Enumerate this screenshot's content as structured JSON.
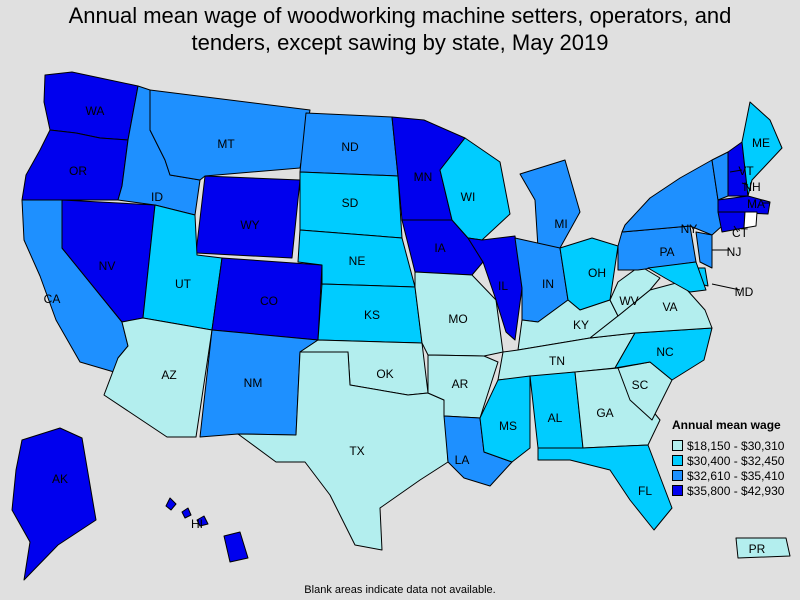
{
  "title_line1": "Annual mean wage of woodworking machine setters, operators, and",
  "title_line2": "tenders, except sawing by state, May 2019",
  "legend": {
    "title": "Annual mean wage",
    "classes": [
      {
        "label": "$18,150 - $30,310",
        "color": "#b3eeee"
      },
      {
        "label": "$30,400 - $32,450",
        "color": "#00ccff"
      },
      {
        "label": "$32,610 - $35,410",
        "color": "#1e90ff"
      },
      {
        "label": "$35,800 - $42,930",
        "color": "#0000ee"
      }
    ]
  },
  "footnote": "Blank areas indicate data not available.",
  "states": [
    {
      "abbr": "WA",
      "class": 3
    },
    {
      "abbr": "OR",
      "class": 3
    },
    {
      "abbr": "CA",
      "class": 2
    },
    {
      "abbr": "NV",
      "class": 3
    },
    {
      "abbr": "ID",
      "class": 2
    },
    {
      "abbr": "MT",
      "class": 2
    },
    {
      "abbr": "WY",
      "class": 3
    },
    {
      "abbr": "UT",
      "class": 1
    },
    {
      "abbr": "AZ",
      "class": 0
    },
    {
      "abbr": "CO",
      "class": 3
    },
    {
      "abbr": "NM",
      "class": 2
    },
    {
      "abbr": "ND",
      "class": 2
    },
    {
      "abbr": "SD",
      "class": 1
    },
    {
      "abbr": "NE",
      "class": 1
    },
    {
      "abbr": "KS",
      "class": 1
    },
    {
      "abbr": "OK",
      "class": 0
    },
    {
      "abbr": "TX",
      "class": 0
    },
    {
      "abbr": "MN",
      "class": 3
    },
    {
      "abbr": "IA",
      "class": 3
    },
    {
      "abbr": "MO",
      "class": 0
    },
    {
      "abbr": "AR",
      "class": 0
    },
    {
      "abbr": "LA",
      "class": 2
    },
    {
      "abbr": "WI",
      "class": 1
    },
    {
      "abbr": "IL",
      "class": 3
    },
    {
      "abbr": "MI",
      "class": 2
    },
    {
      "abbr": "IN",
      "class": 2
    },
    {
      "abbr": "OH",
      "class": 1
    },
    {
      "abbr": "KY",
      "class": 0
    },
    {
      "abbr": "TN",
      "class": 0
    },
    {
      "abbr": "MS",
      "class": 1
    },
    {
      "abbr": "AL",
      "class": 1
    },
    {
      "abbr": "GA",
      "class": 0
    },
    {
      "abbr": "FL",
      "class": 1
    },
    {
      "abbr": "SC",
      "class": 0
    },
    {
      "abbr": "NC",
      "class": 1
    },
    {
      "abbr": "VA",
      "class": 0
    },
    {
      "abbr": "WV",
      "class": 0
    },
    {
      "abbr": "PA",
      "class": 2
    },
    {
      "abbr": "NY",
      "class": 2
    },
    {
      "abbr": "VT",
      "class": 2
    },
    {
      "abbr": "NH",
      "class": 3
    },
    {
      "abbr": "ME",
      "class": 1
    },
    {
      "abbr": "MA",
      "class": 3
    },
    {
      "abbr": "CT",
      "class": 3
    },
    {
      "abbr": "RI",
      "class": null
    },
    {
      "abbr": "NJ",
      "class": 2
    },
    {
      "abbr": "DE",
      "class": 1
    },
    {
      "abbr": "MD",
      "class": 1
    },
    {
      "abbr": "AK",
      "class": 3
    },
    {
      "abbr": "HI",
      "class": 3
    },
    {
      "abbr": "PR",
      "class": 0
    }
  ]
}
